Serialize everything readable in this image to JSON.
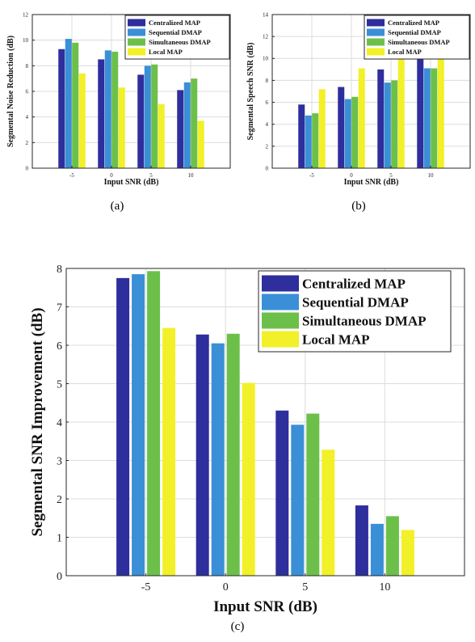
{
  "colors": {
    "Centralized MAP": "#2e2e9c",
    "Sequential DMAP": "#3a8fd6",
    "Simultaneous DMAP": "#6cc04a",
    "Local MAP": "#f2f028",
    "grid": "#dcdcdc",
    "axis": "#262626"
  },
  "chart_data": [
    {
      "type": "bar",
      "caption": "(a)",
      "xlabel": "Input SNR (dB)",
      "ylabel": "Segmental Noise Reduction (dB)",
      "categories": [
        "-5",
        "0",
        "5",
        "10"
      ],
      "ylim": [
        0,
        12
      ],
      "yticks": [
        "0",
        "2",
        "4",
        "6",
        "8",
        "10",
        "12"
      ],
      "grid": true,
      "legend_position": "top-right",
      "series": [
        {
          "name": "Centralized MAP",
          "values": [
            9.3,
            8.5,
            7.3,
            6.1
          ]
        },
        {
          "name": "Sequential DMAP",
          "values": [
            10.1,
            9.2,
            8.0,
            6.7
          ]
        },
        {
          "name": "Simultaneous DMAP",
          "values": [
            9.8,
            9.1,
            8.1,
            7.0
          ]
        },
        {
          "name": "Local MAP",
          "values": [
            7.4,
            6.3,
            5.0,
            3.7
          ]
        }
      ]
    },
    {
      "type": "bar",
      "caption": "(b)",
      "xlabel": "Input SNR (dB)",
      "ylabel": "Segmental Speech SNR (dB)",
      "categories": [
        "-5",
        "0",
        "5",
        "10"
      ],
      "ylim": [
        0,
        14
      ],
      "yticks": [
        "0",
        "2",
        "4",
        "6",
        "8",
        "10",
        "12",
        "14"
      ],
      "grid": true,
      "legend_position": "top-right",
      "series": [
        {
          "name": "Centralized MAP",
          "values": [
            5.8,
            7.4,
            9.0,
            10.2
          ]
        },
        {
          "name": "Sequential DMAP",
          "values": [
            4.8,
            6.3,
            7.8,
            9.1
          ]
        },
        {
          "name": "Simultaneous DMAP",
          "values": [
            5.0,
            6.5,
            8.0,
            9.1
          ]
        },
        {
          "name": "Local MAP",
          "values": [
            7.2,
            9.1,
            11.0,
            12.5
          ]
        }
      ]
    },
    {
      "type": "bar",
      "caption": "(c)",
      "xlabel": "Input SNR (dB)",
      "ylabel": "Segmental SNR Improvement (dB)",
      "categories": [
        "-5",
        "0",
        "5",
        "10"
      ],
      "ylim": [
        0,
        8
      ],
      "yticks": [
        "0",
        "1",
        "2",
        "3",
        "4",
        "5",
        "6",
        "7",
        "8"
      ],
      "grid": true,
      "legend_position": "top-right",
      "series": [
        {
          "name": "Centralized MAP",
          "values": [
            7.75,
            6.28,
            4.3,
            1.83
          ]
        },
        {
          "name": "Sequential DMAP",
          "values": [
            7.85,
            6.05,
            3.93,
            1.35
          ]
        },
        {
          "name": "Simultaneous DMAP",
          "values": [
            7.93,
            6.3,
            4.22,
            1.55
          ]
        },
        {
          "name": "Local MAP",
          "values": [
            6.45,
            5.02,
            3.28,
            1.19
          ]
        }
      ]
    }
  ]
}
